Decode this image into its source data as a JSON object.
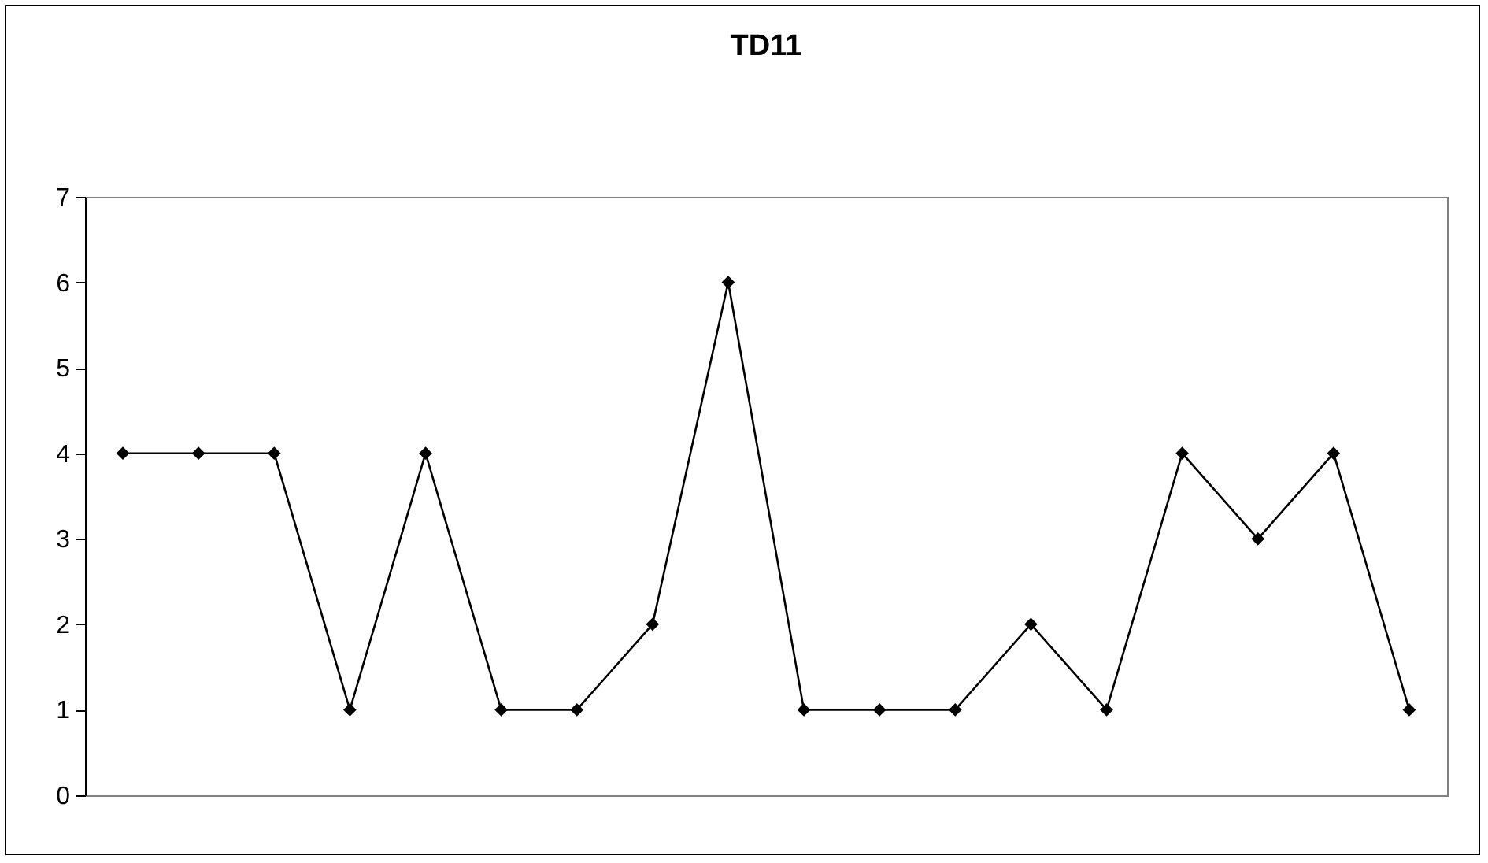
{
  "chart_data": {
    "type": "line",
    "title": "TD11",
    "categories": [
      null,
      null,
      null,
      null,
      null,
      null,
      null,
      null,
      null,
      null,
      null,
      null,
      null,
      null,
      null,
      null,
      null,
      null
    ],
    "series": [
      {
        "color": "#000000",
        "values": [
          4,
          4,
          4,
          1,
          4,
          1,
          1,
          2,
          6,
          1,
          1,
          1,
          2,
          1,
          4,
          3,
          4,
          1
        ]
      }
    ],
    "ylim": [
      0,
      7
    ],
    "yticks": [
      0,
      1,
      2,
      3,
      4,
      5,
      6,
      7
    ],
    "grid": false,
    "tick_labels": "y",
    "marker": "diamond",
    "line_style": "solid"
  }
}
